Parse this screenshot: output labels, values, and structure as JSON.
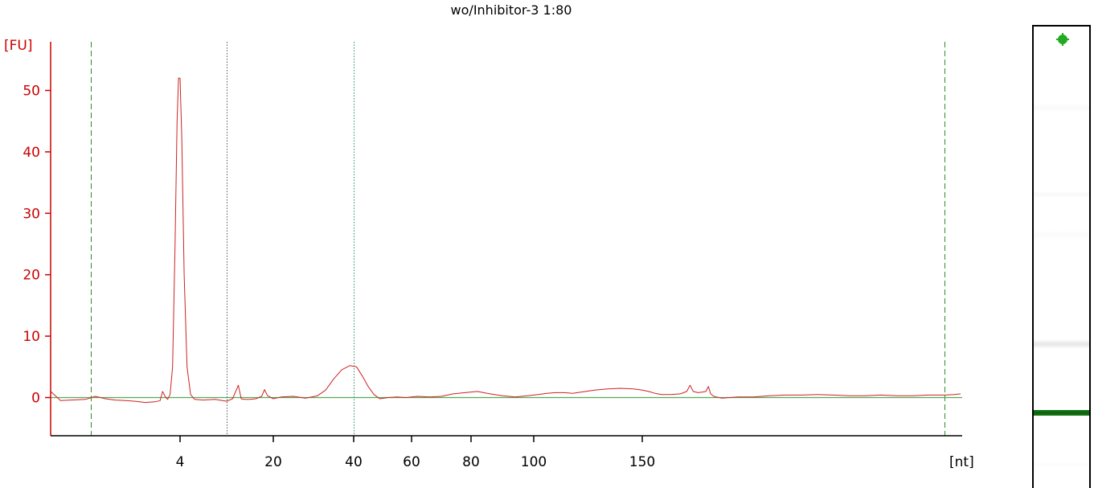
{
  "chart_data": {
    "type": "line",
    "title": "wo/Inhibitor-3 1:80",
    "ylabel": "[FU]",
    "xlabel": "[nt]",
    "ylim": [
      -6,
      58
    ],
    "y_ticks": [
      0,
      10,
      20,
      30,
      40,
      50
    ],
    "x_ticks": [
      {
        "label": "4",
        "t": 4
      },
      {
        "label": "20",
        "t": 20
      },
      {
        "label": "40",
        "t": 40
      },
      {
        "label": "60",
        "t": 60
      },
      {
        "label": "80",
        "t": 80
      },
      {
        "label": "100",
        "t": 100
      },
      {
        "label": "150",
        "t": 150
      }
    ],
    "baseline_value": 0,
    "marker_lines": [
      {
        "kind": "dashed",
        "t": -14,
        "color": "#2e8b2e"
      },
      {
        "kind": "dotted",
        "t": 12,
        "color": "#555555"
      },
      {
        "kind": "dotted",
        "t": 40,
        "color": "#2e8b57"
      },
      {
        "kind": "dashed",
        "t": 340,
        "color": "#2e8b2e"
      }
    ],
    "series": [
      {
        "color": "#cc2222",
        "points": [
          [
            -22,
            1.0
          ],
          [
            -20,
            -0.5
          ],
          [
            -18,
            -0.4
          ],
          [
            -15,
            -0.3
          ],
          [
            -13,
            0.2
          ],
          [
            -11,
            -0.2
          ],
          [
            -9,
            -0.4
          ],
          [
            -7,
            -0.5
          ],
          [
            -5,
            -0.6
          ],
          [
            -3,
            -0.8
          ],
          [
            -1,
            -0.7
          ],
          [
            0,
            -0.5
          ],
          [
            0.5,
            1.0
          ],
          [
            1.0,
            0.2
          ],
          [
            1.5,
            -0.3
          ],
          [
            2.0,
            0.5
          ],
          [
            2.5,
            5
          ],
          [
            3.0,
            25
          ],
          [
            3.4,
            45
          ],
          [
            3.7,
            52
          ],
          [
            4.0,
            52
          ],
          [
            4.3,
            42
          ],
          [
            4.7,
            20
          ],
          [
            5.2,
            5
          ],
          [
            5.8,
            0.5
          ],
          [
            6.5,
            -0.3
          ],
          [
            8,
            -0.4
          ],
          [
            10,
            -0.3
          ],
          [
            12,
            -0.6
          ],
          [
            13,
            -0.2
          ],
          [
            14,
            2.0
          ],
          [
            14.5,
            -0.2
          ],
          [
            15,
            -0.3
          ],
          [
            16,
            -0.3
          ],
          [
            17,
            -0.2
          ],
          [
            18,
            0.2
          ],
          [
            18.5,
            1.3
          ],
          [
            19,
            0.3
          ],
          [
            20,
            -0.2
          ],
          [
            22,
            0.1
          ],
          [
            25,
            0.2
          ],
          [
            28,
            -0.1
          ],
          [
            31,
            0.3
          ],
          [
            33,
            1.2
          ],
          [
            35,
            3.0
          ],
          [
            37,
            4.5
          ],
          [
            39,
            5.2
          ],
          [
            41,
            5.0
          ],
          [
            43,
            3.5
          ],
          [
            45,
            1.8
          ],
          [
            47,
            0.5
          ],
          [
            49,
            -0.2
          ],
          [
            52,
            0.0
          ],
          [
            55,
            0.1
          ],
          [
            58,
            0.0
          ],
          [
            62,
            0.2
          ],
          [
            66,
            0.1
          ],
          [
            70,
            0.2
          ],
          [
            74,
            0.6
          ],
          [
            78,
            0.8
          ],
          [
            82,
            1.0
          ],
          [
            86,
            0.6
          ],
          [
            90,
            0.3
          ],
          [
            94,
            0.1
          ],
          [
            98,
            0.3
          ],
          [
            102,
            0.5
          ],
          [
            106,
            0.7
          ],
          [
            110,
            0.8
          ],
          [
            114,
            0.8
          ],
          [
            118,
            0.7
          ],
          [
            122,
            0.9
          ],
          [
            128,
            1.2
          ],
          [
            134,
            1.4
          ],
          [
            140,
            1.5
          ],
          [
            146,
            1.4
          ],
          [
            150,
            1.2
          ],
          [
            154,
            1.0
          ],
          [
            158,
            0.7
          ],
          [
            162,
            0.5
          ],
          [
            168,
            0.5
          ],
          [
            174,
            0.6
          ],
          [
            178,
            1.0
          ],
          [
            180,
            2.0
          ],
          [
            182,
            1.0
          ],
          [
            185,
            0.8
          ],
          [
            188,
            0.9
          ],
          [
            190,
            1.0
          ],
          [
            191.5,
            1.8
          ],
          [
            193,
            0.6
          ],
          [
            195,
            0.2
          ],
          [
            200,
            -0.1
          ],
          [
            210,
            0.1
          ],
          [
            220,
            0.1
          ],
          [
            230,
            0.3
          ],
          [
            240,
            0.4
          ],
          [
            250,
            0.4
          ],
          [
            260,
            0.5
          ],
          [
            270,
            0.4
          ],
          [
            280,
            0.3
          ],
          [
            290,
            0.3
          ],
          [
            300,
            0.4
          ],
          [
            310,
            0.3
          ],
          [
            320,
            0.3
          ],
          [
            330,
            0.4
          ],
          [
            340,
            0.4
          ],
          [
            346,
            0.5
          ],
          [
            350,
            0.6
          ]
        ]
      }
    ]
  },
  "gel": {
    "marker_color": "#22aa22",
    "bands": [
      {
        "intensity": 0.04
      },
      {
        "intensity": 0.05
      },
      {
        "intensity": 0.03
      },
      {
        "intensity": 0.18
      },
      {
        "intensity": 1.0
      },
      {
        "intensity": 0.03
      }
    ]
  }
}
